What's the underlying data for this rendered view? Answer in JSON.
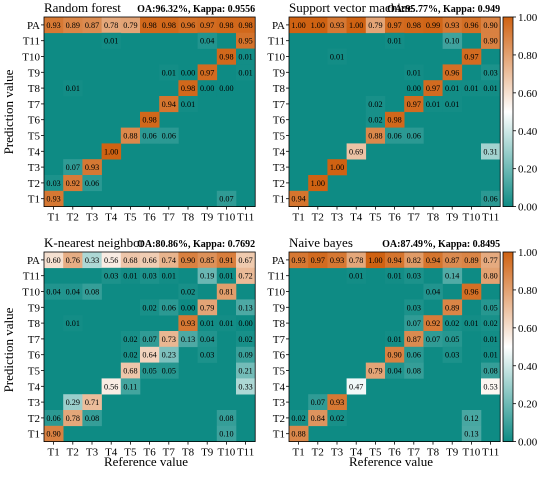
{
  "figure": {
    "ylabel": "Prediction value",
    "xlabel": "Reference value",
    "colorbar_ticks": [
      "1.00",
      "0.80",
      "0.60",
      "0.40",
      "0.20",
      "0.00"
    ]
  },
  "colors": {
    "low": "#0e8b84",
    "white": "#ffffff",
    "high": "#cf6212",
    "background": "#ffffff"
  },
  "chart_data": [
    {
      "type": "heatmap",
      "title": "Random forest",
      "metrics": "OA:96.32%, Kappa: 0.9556",
      "x_categories": [
        "T1",
        "T2",
        "T3",
        "T4",
        "T5",
        "T6",
        "T7",
        "T8",
        "T9",
        "T10",
        "T11"
      ],
      "y_categories": [
        "PA",
        "T11",
        "T10",
        "T9",
        "T8",
        "T7",
        "T6",
        "T5",
        "T4",
        "T3",
        "T2",
        "T1"
      ],
      "values": [
        [
          "0.93",
          "0.89",
          "0.87",
          "0.78",
          "0.79",
          "0.98",
          "0.98",
          "0.96",
          "0.97",
          "0.98",
          "0.98"
        ],
        [
          "",
          "",
          "",
          "0.01",
          "",
          "",
          "",
          "",
          "0.04",
          "",
          "0.95"
        ],
        [
          "",
          "",
          "",
          "",
          "",
          "",
          "",
          "",
          "",
          "0.98",
          "0.01"
        ],
        [
          "",
          "",
          "",
          "",
          "",
          "",
          "0.01",
          "0.00",
          "0.97",
          "",
          "0.01"
        ],
        [
          "",
          "0.01",
          "",
          "",
          "",
          "",
          "",
          "0.98",
          "0.00",
          "0.00",
          ""
        ],
        [
          "",
          "",
          "",
          "",
          "",
          "",
          "0.94",
          "0.01",
          "",
          "",
          ""
        ],
        [
          "",
          "",
          "",
          "",
          "",
          "0.98",
          "",
          "",
          "",
          "",
          ""
        ],
        [
          "",
          "",
          "",
          "",
          "0.88",
          "0.06",
          "0.06",
          "",
          "",
          "",
          ""
        ],
        [
          "",
          "",
          "",
          "1.00",
          "",
          "",
          "",
          "",
          "",
          "",
          ""
        ],
        [
          "",
          "0.07",
          "0.93",
          "",
          "",
          "",
          "",
          "",
          "",
          "",
          ""
        ],
        [
          "0.03",
          "0.92",
          "0.06",
          "",
          "",
          "",
          "",
          "",
          "",
          "",
          ""
        ],
        [
          "0.93",
          "",
          "",
          "",
          "",
          "",
          "",
          "",
          "",
          "0.07",
          ""
        ]
      ],
      "zlim": [
        0,
        1
      ]
    },
    {
      "type": "heatmap",
      "title": "Support vector machine",
      "metrics": "OA:95.77%, Kappa: 0.949",
      "x_categories": [
        "T1",
        "T2",
        "T3",
        "T4",
        "T5",
        "T6",
        "T7",
        "T8",
        "T9",
        "T10",
        "T11"
      ],
      "y_categories": [
        "PA",
        "T11",
        "T10",
        "T9",
        "T8",
        "T7",
        "T6",
        "T5",
        "T4",
        "T3",
        "T2",
        "T1"
      ],
      "values": [
        [
          "1.00",
          "1.00",
          "0.93",
          "1.00",
          "0.79",
          "0.97",
          "0.98",
          "0.99",
          "0.93",
          "0.96",
          "0.90"
        ],
        [
          "",
          "",
          "",
          "",
          "",
          "0.01",
          "",
          "",
          "0.10",
          "",
          "0.90"
        ],
        [
          "",
          "",
          "0.01",
          "",
          "",
          "",
          "",
          "",
          "",
          "0.97",
          ""
        ],
        [
          "",
          "",
          "",
          "",
          "",
          "",
          "0.01",
          "",
          "0.96",
          "",
          "0.03"
        ],
        [
          "",
          "",
          "",
          "",
          "",
          "",
          "0.00",
          "0.97",
          "0.01",
          "0.01",
          "0.01"
        ],
        [
          "",
          "",
          "",
          "",
          "0.02",
          "",
          "0.97",
          "0.01",
          "0.01",
          "",
          ""
        ],
        [
          "",
          "",
          "",
          "",
          "0.02",
          "0.98",
          "",
          "",
          "",
          "",
          ""
        ],
        [
          "",
          "",
          "",
          "",
          "0.88",
          "0.06",
          "0.06",
          "",
          "",
          "",
          ""
        ],
        [
          "",
          "",
          "",
          "0.69",
          "",
          "",
          "",
          "",
          "",
          "",
          "0.31"
        ],
        [
          "",
          "",
          "1.00",
          "",
          "",
          "",
          "",
          "",
          "",
          "",
          ""
        ],
        [
          "",
          "1.00",
          "",
          "",
          "",
          "",
          "",
          "",
          "",
          "",
          ""
        ],
        [
          "0.94",
          "",
          "",
          "",
          "",
          "",
          "",
          "",
          "",
          "",
          "0.06"
        ]
      ],
      "zlim": [
        0,
        1
      ]
    },
    {
      "type": "heatmap",
      "title": "K-nearest neighbor",
      "metrics": "OA:80.86%, Kappa: 0.7692",
      "x_categories": [
        "T1",
        "T2",
        "T3",
        "T4",
        "T5",
        "T6",
        "T7",
        "T8",
        "T9",
        "T10",
        "T11"
      ],
      "y_categories": [
        "PA",
        "T11",
        "T10",
        "T9",
        "T8",
        "T7",
        "T6",
        "T5",
        "T4",
        "T3",
        "T2",
        "T1"
      ],
      "values": [
        [
          "0.60",
          "0.76",
          "0.33",
          "0.56",
          "0.68",
          "0.66",
          "0.74",
          "0.90",
          "0.85",
          "0.91",
          "0.67"
        ],
        [
          "",
          "",
          "",
          "0.03",
          "0.01",
          "0.03",
          "0.01",
          "",
          "0.19",
          "0.01",
          "0.72"
        ],
        [
          "0.04",
          "0.04",
          "0.08",
          "",
          "",
          "",
          "",
          "0.02",
          "",
          "0.81",
          ""
        ],
        [
          "",
          "",
          "",
          "",
          "",
          "0.02",
          "0.06",
          "0.00",
          "0.79",
          "",
          "0.13"
        ],
        [
          "",
          "0.01",
          "",
          "",
          "",
          "",
          "",
          "0.93",
          "0.01",
          "0.01",
          "0.00"
        ],
        [
          "",
          "",
          "",
          "",
          "0.02",
          "0.07",
          "0.73",
          "0.13",
          "0.04",
          "",
          "0.02"
        ],
        [
          "",
          "",
          "",
          "",
          "0.02",
          "0.64",
          "0.23",
          "",
          "0.03",
          "",
          "0.09"
        ],
        [
          "",
          "",
          "",
          "",
          "0.68",
          "0.05",
          "0.05",
          "",
          "",
          "",
          "0.21"
        ],
        [
          "",
          "",
          "",
          "0.56",
          "0.11",
          "",
          "",
          "",
          "",
          "",
          "0.33"
        ],
        [
          "",
          "0.29",
          "0.71",
          "",
          "",
          "",
          "",
          "",
          "",
          "",
          ""
        ],
        [
          "0.06",
          "0.78",
          "0.08",
          "",
          "",
          "",
          "",
          "",
          "",
          "0.08",
          ""
        ],
        [
          "0.90",
          "",
          "",
          "",
          "",
          "",
          "",
          "",
          "",
          "0.10",
          ""
        ]
      ],
      "zlim": [
        0,
        1
      ]
    },
    {
      "type": "heatmap",
      "title": "Naive bayes",
      "metrics": "OA:87.49%, Kappa: 0.8495",
      "x_categories": [
        "T1",
        "T2",
        "T3",
        "T4",
        "T5",
        "T6",
        "T7",
        "T8",
        "T9",
        "T10",
        "T11"
      ],
      "y_categories": [
        "PA",
        "T11",
        "T10",
        "T9",
        "T8",
        "T7",
        "T6",
        "T5",
        "T4",
        "T3",
        "T2",
        "T1"
      ],
      "values": [
        [
          "0.93",
          "0.97",
          "0.93",
          "0.78",
          "1.00",
          "0.94",
          "0.82",
          "0.94",
          "0.87",
          "0.89",
          "0.77"
        ],
        [
          "",
          "",
          "",
          "0.01",
          "",
          "0.01",
          "0.03",
          "",
          "0.14",
          "",
          "0.80"
        ],
        [
          "",
          "",
          "",
          "",
          "",
          "",
          "",
          "0.04",
          "",
          "0.96",
          ""
        ],
        [
          "",
          "",
          "",
          "",
          "",
          "",
          "0.03",
          "",
          "0.89",
          "",
          "0.05"
        ],
        [
          "",
          "",
          "",
          "",
          "",
          "",
          "0.07",
          "0.92",
          "0.02",
          "0.01",
          "0.02"
        ],
        [
          "",
          "",
          "",
          "",
          "",
          "0.01",
          "0.87",
          "0.07",
          "0.05",
          "",
          "0.01"
        ],
        [
          "",
          "",
          "",
          "",
          "",
          "0.90",
          "0.06",
          "",
          "0.03",
          "",
          "0.01"
        ],
        [
          "",
          "",
          "",
          "",
          "0.79",
          "0.04",
          "0.08",
          "",
          "",
          "",
          "0.08"
        ],
        [
          "",
          "",
          "",
          "0.47",
          "",
          "",
          "",
          "",
          "",
          "",
          "0.53"
        ],
        [
          "",
          "0.07",
          "0.93",
          "",
          "",
          "",
          "",
          "",
          "",
          "",
          ""
        ],
        [
          "0.02",
          "0.84",
          "0.02",
          "",
          "",
          "",
          "",
          "",
          "",
          "0.12",
          ""
        ],
        [
          "0.88",
          "",
          "",
          "",
          "",
          "",
          "",
          "",
          "",
          "0.13",
          ""
        ]
      ],
      "zlim": [
        0,
        1
      ]
    }
  ]
}
